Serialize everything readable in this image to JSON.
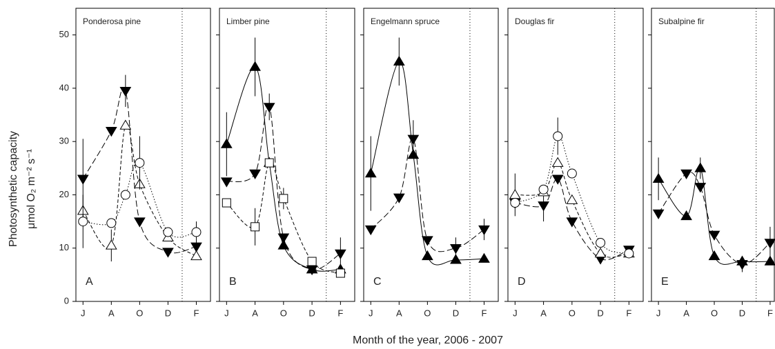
{
  "y_label": "Photosynthetic capacity",
  "y_label_unit": "μmol O₂ m⁻² s⁻¹",
  "x_label": "Month of the year,  2006 - 2007",
  "chart_data": [
    {
      "type": "line",
      "title": "Ponderosa pine",
      "panel_label": "A",
      "ytick_labels": true,
      "vline": 13,
      "x": [
        6,
        8,
        9,
        10,
        12,
        14
      ],
      "xlim": [
        5.5,
        15
      ],
      "xticks": [
        {
          "value": 6,
          "label": "J"
        },
        {
          "value": 8,
          "label": "A"
        },
        {
          "value": 10,
          "label": "O"
        },
        {
          "value": 12,
          "label": "D"
        },
        {
          "value": 14,
          "label": "F"
        }
      ],
      "ylim": [
        0,
        55
      ],
      "yticks": [
        0,
        10,
        20,
        30,
        40,
        50
      ],
      "series": [
        {
          "marker": "down-filled",
          "dash": "long",
          "color": "#000",
          "values": [
            23,
            32,
            39.5,
            15,
            9.3,
            10.3
          ],
          "errors": [
            7.5,
            null,
            3,
            null,
            null,
            null
          ]
        },
        {
          "marker": "up-open",
          "dash": "dash",
          "color": "#000",
          "values": [
            17,
            10.5,
            33,
            22,
            12,
            8.5
          ],
          "errors": [
            null,
            3,
            null,
            null,
            null,
            null
          ]
        },
        {
          "marker": "circle-open",
          "dash": "dot",
          "color": "#000",
          "values": [
            15,
            14.7,
            20,
            26,
            13,
            13
          ],
          "errors": [
            5,
            null,
            null,
            5,
            null,
            2
          ]
        }
      ]
    },
    {
      "type": "line",
      "title": "Limber pine",
      "panel_label": "B",
      "ytick_labels": false,
      "vline": 13,
      "x": [
        6,
        8,
        9,
        10,
        12,
        14
      ],
      "xlim": [
        5.5,
        15
      ],
      "xticks": [
        {
          "value": 6,
          "label": "J"
        },
        {
          "value": 8,
          "label": "A"
        },
        {
          "value": 10,
          "label": "O"
        },
        {
          "value": 12,
          "label": "D"
        },
        {
          "value": 14,
          "label": "F"
        }
      ],
      "ylim": [
        0,
        55
      ],
      "yticks": [
        0,
        10,
        20,
        30,
        40,
        50
      ],
      "series": [
        {
          "marker": "up-filled",
          "dash": "solid",
          "color": "#000",
          "values": [
            29.5,
            44,
            26,
            10.5,
            6,
            6
          ],
          "errors": [
            6,
            5.5,
            null,
            null,
            null,
            null
          ]
        },
        {
          "marker": "down-filled",
          "dash": "long",
          "color": "#000",
          "values": [
            22.5,
            24,
            36.5,
            12,
            6,
            9
          ],
          "errors": [
            null,
            null,
            2.5,
            null,
            null,
            3
          ]
        },
        {
          "marker": "square-open",
          "dash": "dash",
          "color": "#000",
          "values": [
            18.5,
            14,
            26,
            19.3,
            7.5,
            5.3
          ],
          "errors": [
            null,
            3.5,
            null,
            2,
            null,
            null
          ]
        }
      ]
    },
    {
      "type": "line",
      "title": "Engelmann spruce",
      "panel_label": "C",
      "ytick_labels": false,
      "vline": 13,
      "x": [
        6,
        8,
        9,
        10,
        12,
        14
      ],
      "xlim": [
        5.5,
        15
      ],
      "xticks": [
        {
          "value": 6,
          "label": "J"
        },
        {
          "value": 8,
          "label": "A"
        },
        {
          "value": 10,
          "label": "O"
        },
        {
          "value": 12,
          "label": "D"
        },
        {
          "value": 14,
          "label": "F"
        }
      ],
      "ylim": [
        0,
        55
      ],
      "yticks": [
        0,
        10,
        20,
        30,
        40,
        50
      ],
      "series": [
        {
          "marker": "up-filled",
          "dash": "solid",
          "color": "#000",
          "values": [
            24,
            45,
            27.5,
            8.5,
            7.8,
            8
          ],
          "errors": [
            7,
            4.5,
            null,
            null,
            null,
            null
          ]
        },
        {
          "marker": "down-filled",
          "dash": "long",
          "color": "#000",
          "values": [
            13.5,
            19.5,
            30.5,
            11.5,
            10,
            13.5
          ],
          "errors": [
            null,
            null,
            3.5,
            null,
            2,
            2
          ]
        }
      ]
    },
    {
      "type": "line",
      "title": "Douglas fir",
      "panel_label": "D",
      "ytick_labels": false,
      "vline": 13,
      "x": [
        6,
        8,
        9,
        10,
        12,
        14
      ],
      "xlim": [
        5.5,
        15
      ],
      "xticks": [
        {
          "value": 6,
          "label": "J"
        },
        {
          "value": 8,
          "label": "A"
        },
        {
          "value": 10,
          "label": "O"
        },
        {
          "value": 12,
          "label": "D"
        },
        {
          "value": 14,
          "label": "F"
        }
      ],
      "ylim": [
        0,
        55
      ],
      "yticks": [
        0,
        10,
        20,
        30,
        40,
        50
      ],
      "series": [
        {
          "marker": "down-filled",
          "dash": "long",
          "color": "#000",
          "values": [
            18.5,
            18,
            23,
            15,
            8,
            9.7
          ],
          "errors": [
            null,
            3,
            null,
            null,
            null,
            null
          ]
        },
        {
          "marker": "up-open",
          "dash": "dash",
          "color": "#000",
          "values": [
            20,
            20.5,
            26,
            19,
            9,
            9
          ],
          "errors": [
            4,
            null,
            null,
            null,
            null,
            null
          ]
        },
        {
          "marker": "circle-open",
          "dash": "dot",
          "color": "#000",
          "values": [
            18.5,
            21,
            31,
            24,
            11,
            9
          ],
          "errors": [
            null,
            null,
            3.5,
            null,
            null,
            null
          ]
        }
      ]
    },
    {
      "type": "line",
      "title": "Subalpine fir",
      "panel_label": "E",
      "ytick_labels": false,
      "vline": 13,
      "x": [
        6,
        8,
        9,
        10,
        12,
        14
      ],
      "xlim": [
        5.5,
        14.3
      ],
      "xticks": [
        {
          "value": 6,
          "label": "J"
        },
        {
          "value": 8,
          "label": "A"
        },
        {
          "value": 10,
          "label": "O"
        },
        {
          "value": 12,
          "label": "D"
        },
        {
          "value": 14,
          "label": "F"
        }
      ],
      "ylim": [
        0,
        55
      ],
      "yticks": [
        0,
        10,
        20,
        30,
        40,
        50
      ],
      "series": [
        {
          "marker": "up-filled",
          "dash": "solid",
          "color": "#000",
          "values": [
            23,
            16,
            25,
            8.5,
            7.5,
            7.5
          ],
          "errors": [
            4,
            null,
            2,
            null,
            null,
            null
          ]
        },
        {
          "marker": "down-filled",
          "dash": "long",
          "color": "#000",
          "values": [
            16.5,
            24,
            21.5,
            12.5,
            7,
            11
          ],
          "errors": [
            null,
            null,
            null,
            null,
            1.5,
            3
          ]
        }
      ]
    }
  ]
}
